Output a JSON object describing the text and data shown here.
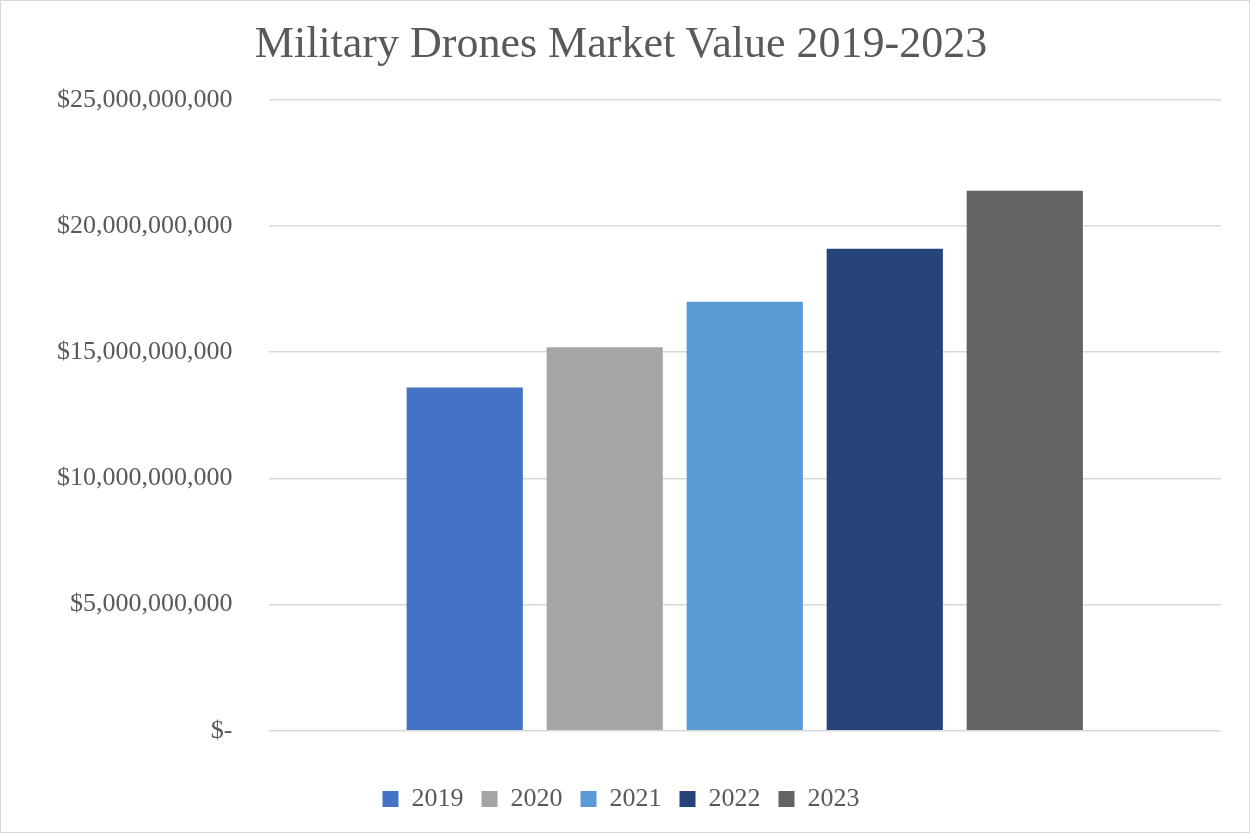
{
  "chart_data": {
    "type": "bar",
    "title": "Military Drones Market Value 2019-2023",
    "categories": [
      null
    ],
    "series": [
      {
        "name": "2019",
        "color": "#4472c4",
        "values": [
          13600000000
        ]
      },
      {
        "name": "2020",
        "color": "#a5a5a5",
        "values": [
          15200000000
        ]
      },
      {
        "name": "2021",
        "color": "#5b9bd5",
        "values": [
          17000000000
        ]
      },
      {
        "name": "2022",
        "color": "#264478",
        "values": [
          19100000000
        ]
      },
      {
        "name": "2023",
        "color": "#636363",
        "values": [
          21400000000
        ]
      }
    ],
    "ylim": [
      0,
      25000000000
    ],
    "yticks": [
      {
        "value": 0,
        "label": "$-"
      },
      {
        "value": 5000000000,
        "label": "$5,000,000,000"
      },
      {
        "value": 10000000000,
        "label": "$10,000,000,000"
      },
      {
        "value": 15000000000,
        "label": "$15,000,000,000"
      },
      {
        "value": 20000000000,
        "label": "$20,000,000,000"
      },
      {
        "value": 25000000000,
        "label": "$25,000,000,000"
      }
    ],
    "grid": "y",
    "legend": "bottom"
  }
}
